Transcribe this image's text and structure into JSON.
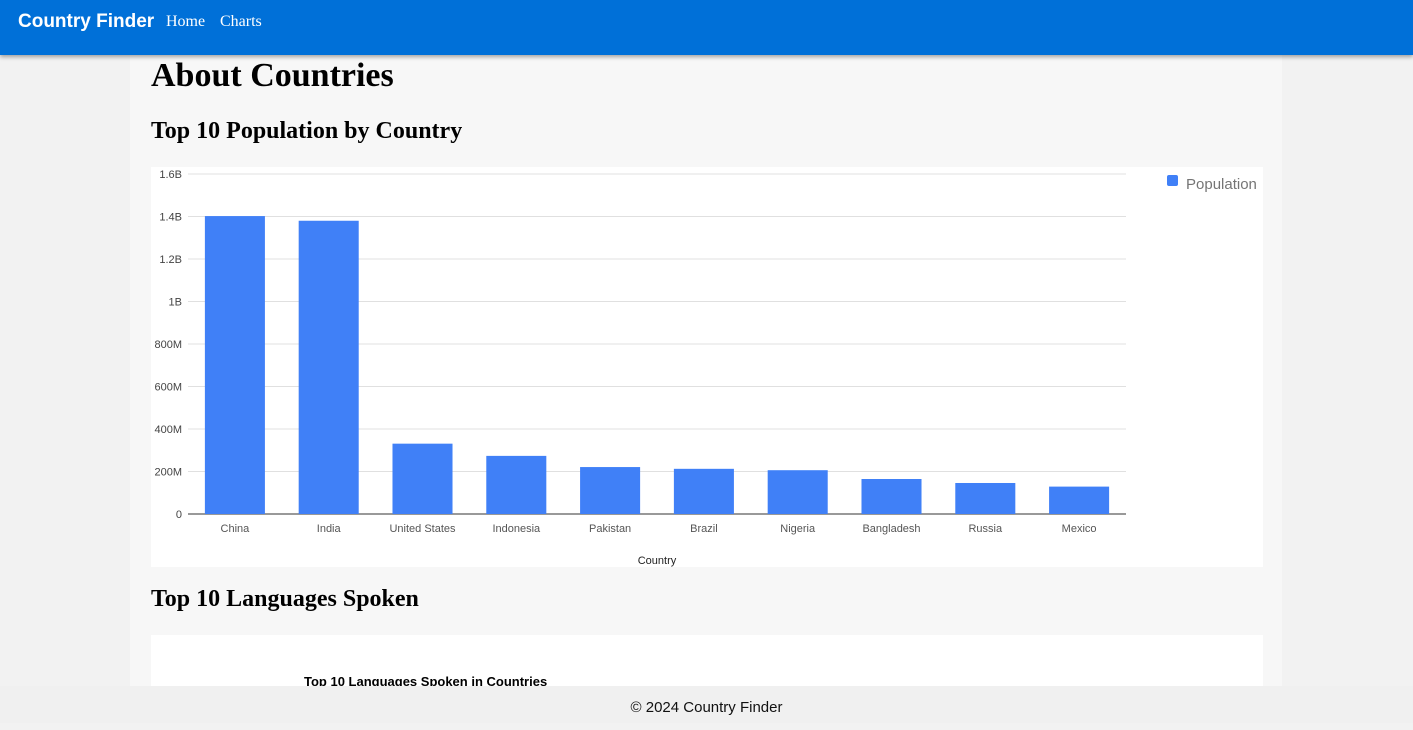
{
  "navbar": {
    "brand": "Country Finder",
    "links": [
      {
        "label": "Home"
      },
      {
        "label": "Charts"
      }
    ],
    "color": "#0070d8"
  },
  "page_title": "About Countries",
  "sections": [
    {
      "title": "Top 10 Population by Country"
    },
    {
      "title": "Top 10 Languages Spoken"
    }
  ],
  "languages_chart": {
    "title": "Top 10 Languages Spoken in Countries"
  },
  "chart_data": {
    "type": "bar",
    "categories": [
      "China",
      "India",
      "United States",
      "Indonesia",
      "Pakistan",
      "Brazil",
      "Nigeria",
      "Bangladesh",
      "Russia",
      "Mexico"
    ],
    "series": [
      {
        "name": "Population",
        "color": "#4080f7",
        "values": [
          1402000000,
          1380000000,
          331000000,
          273500000,
          220900000,
          212600000,
          206100000,
          164700000,
          145900000,
          128900000
        ]
      }
    ],
    "xlabel": "Country",
    "ylabel": "",
    "ylim": [
      0,
      1600000000
    ],
    "yticks": [
      {
        "value": 0,
        "label": "0"
      },
      {
        "value": 200000000,
        "label": "200M"
      },
      {
        "value": 400000000,
        "label": "400M"
      },
      {
        "value": 600000000,
        "label": "600M"
      },
      {
        "value": 800000000,
        "label": "800M"
      },
      {
        "value": 1000000000,
        "label": "1B"
      },
      {
        "value": 1200000000,
        "label": "1.2B"
      },
      {
        "value": 1400000000,
        "label": "1.4B"
      },
      {
        "value": 1600000000,
        "label": "1.6B"
      }
    ],
    "grid": true,
    "legend": "top-right"
  },
  "footer": {
    "text": "© 2024 Country Finder"
  }
}
